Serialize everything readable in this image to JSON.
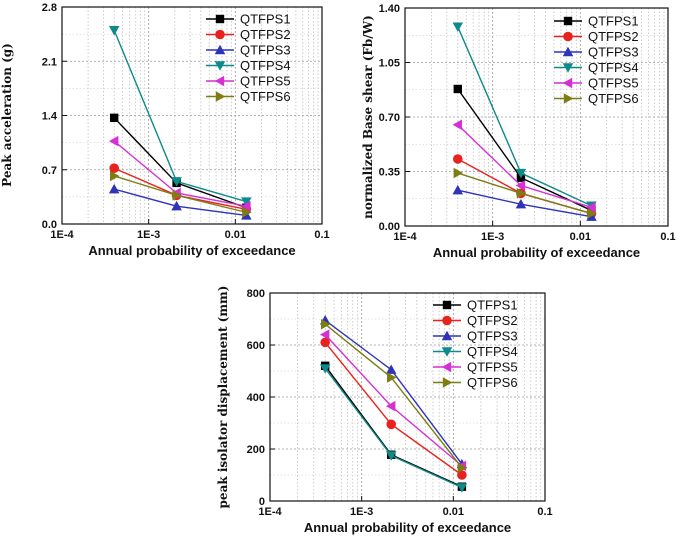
{
  "chart_data": [
    {
      "type": "line",
      "xscale": "log",
      "xlim": [
        0.0001,
        0.1
      ],
      "ylim": [
        0,
        2.8
      ],
      "x_ticks": [
        "1E-4",
        "1E-3",
        "0.01",
        "0.1"
      ],
      "y_ticks": [
        "0.0",
        "0.7",
        "1.4",
        "2.1",
        "2.8"
      ],
      "xlabel": "Annual probability of exceedance",
      "ylabel": "Peak acceleration (g)",
      "legend": "top-right",
      "x": [
        0.0004,
        0.0021,
        0.0134
      ],
      "series": [
        {
          "name": "QTFPS1",
          "marker": "square",
          "color": "#000000",
          "values": [
            1.37,
            0.53,
            0.21
          ]
        },
        {
          "name": "QTFPS2",
          "marker": "circle",
          "color": "#e8231f",
          "values": [
            0.72,
            0.37,
            0.19
          ]
        },
        {
          "name": "QTFPS3",
          "marker": "triangle-up",
          "color": "#2e33b8",
          "values": [
            0.45,
            0.23,
            0.11
          ]
        },
        {
          "name": "QTFPS4",
          "marker": "triangle-down",
          "color": "#0f8a8a",
          "values": [
            2.5,
            0.55,
            0.29
          ]
        },
        {
          "name": "QTFPS5",
          "marker": "triangle-left",
          "color": "#d62fd4",
          "values": [
            1.07,
            0.4,
            0.23
          ]
        },
        {
          "name": "QTFPS6",
          "marker": "triangle-right",
          "color": "#7d7d14",
          "values": [
            0.62,
            0.37,
            0.15
          ]
        }
      ]
    },
    {
      "type": "line",
      "xscale": "log",
      "xlim": [
        0.0001,
        0.1
      ],
      "ylim": [
        0,
        1.4
      ],
      "x_ticks": [
        "1E-4",
        "1E-3",
        "0.01",
        "0.1"
      ],
      "y_ticks": [
        "0.00",
        "0.35",
        "0.70",
        "1.05",
        "1.40"
      ],
      "xlabel": "Annual probability of exceedance",
      "ylabel": "normalized Base shear (Fb/W)",
      "legend": "top-right",
      "x": [
        0.0004,
        0.0021,
        0.0134
      ],
      "series": [
        {
          "name": "QTFPS1",
          "marker": "square",
          "color": "#000000",
          "values": [
            0.88,
            0.31,
            0.1
          ]
        },
        {
          "name": "QTFPS2",
          "marker": "circle",
          "color": "#e8231f",
          "values": [
            0.43,
            0.21,
            0.08
          ]
        },
        {
          "name": "QTFPS3",
          "marker": "triangle-up",
          "color": "#2e33b8",
          "values": [
            0.23,
            0.14,
            0.06
          ]
        },
        {
          "name": "QTFPS4",
          "marker": "triangle-down",
          "color": "#0f8a8a",
          "values": [
            1.28,
            0.34,
            0.13
          ]
        },
        {
          "name": "QTFPS5",
          "marker": "triangle-left",
          "color": "#d62fd4",
          "values": [
            0.65,
            0.26,
            0.12
          ]
        },
        {
          "name": "QTFPS6",
          "marker": "triangle-right",
          "color": "#7d7d14",
          "values": [
            0.34,
            0.21,
            0.08
          ]
        }
      ]
    },
    {
      "type": "line",
      "xscale": "log",
      "xlim": [
        0.0001,
        0.1
      ],
      "ylim": [
        0,
        800
      ],
      "x_ticks": [
        "1E-4",
        "1E-3",
        "0.01",
        "0.1"
      ],
      "y_ticks": [
        "0",
        "200",
        "400",
        "600",
        "800"
      ],
      "xlabel": "Annual probability of exceedance",
      "ylabel": "peak isolator displacement (mm)",
      "legend": "top-right",
      "x": [
        0.0004,
        0.0021,
        0.0124
      ],
      "series": [
        {
          "name": "QTFPS1",
          "marker": "square",
          "color": "#000000",
          "values": [
            520,
            178,
            55
          ]
        },
        {
          "name": "QTFPS2",
          "marker": "circle",
          "color": "#e8231f",
          "values": [
            610,
            295,
            100
          ]
        },
        {
          "name": "QTFPS3",
          "marker": "triangle-up",
          "color": "#2e33b8",
          "values": [
            695,
            505,
            142
          ]
        },
        {
          "name": "QTFPS4",
          "marker": "triangle-down",
          "color": "#0f8a8a",
          "values": [
            510,
            175,
            52
          ]
        },
        {
          "name": "QTFPS5",
          "marker": "triangle-left",
          "color": "#d62fd4",
          "values": [
            640,
            365,
            135
          ]
        },
        {
          "name": "QTFPS6",
          "marker": "triangle-right",
          "color": "#7d7d14",
          "values": [
            680,
            475,
            128
          ]
        }
      ]
    }
  ]
}
